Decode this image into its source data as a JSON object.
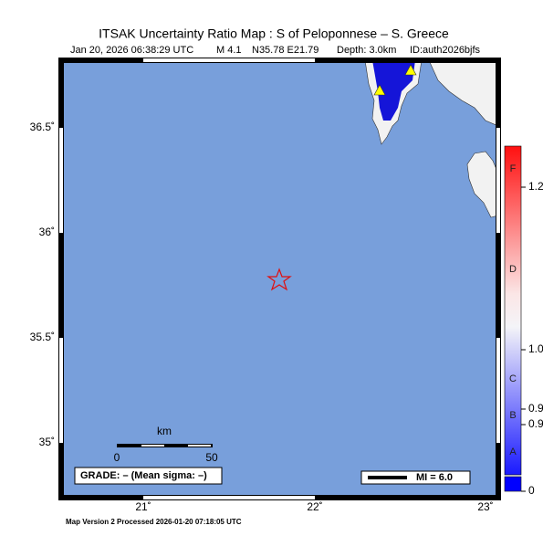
{
  "header": {
    "title": "ITSAK Uncertainty Ratio Map : S of Peloponnese – S. Greece",
    "subtitle": [
      "Jan 20, 2026 06:38:29 UTC",
      "M 4.1",
      "N35.78 E21.79",
      "Depth: 3.0km",
      "ID:auth2026bjfs"
    ]
  },
  "map": {
    "lat_labels": [
      "36.5˚",
      "36˚",
      "35.5˚",
      "35˚"
    ],
    "lon_labels": [
      "21˚",
      "22˚",
      "23˚"
    ]
  },
  "scale_bar": {
    "unit": "km",
    "labels": [
      "0",
      "50"
    ]
  },
  "grade": "GRADE: – (Mean sigma: –)",
  "intensity": "MI = 6.0",
  "colorbar": {
    "grades": [
      "F",
      "D",
      "C",
      "B",
      "A"
    ],
    "tick_labels": [
      "1.2",
      "1.0",
      "0.9",
      "0.9",
      "0"
    ]
  },
  "footer": "Map Version 2 Processed 2026-01-20 07:18:05 UTC"
}
